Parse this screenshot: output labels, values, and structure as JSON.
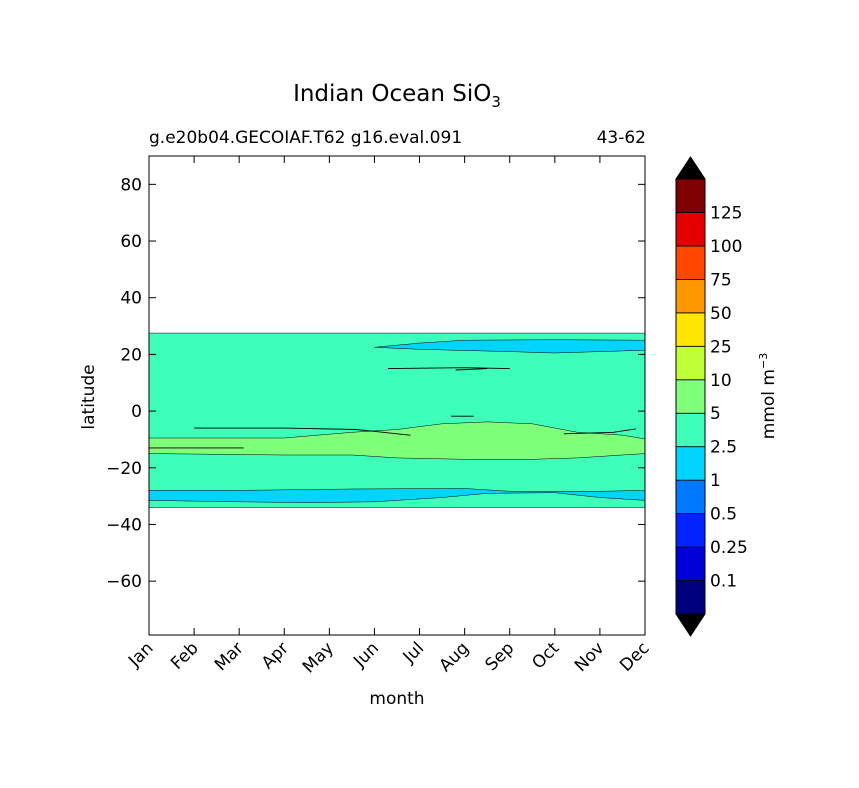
{
  "chart_data": {
    "type": "contour",
    "title_main": "Indian Ocean SiO",
    "title_sub": "3",
    "case_label": "g.e20b04.GECOIAF.T62 g16.eval.091",
    "years_label": "43-62",
    "xlabel": "month",
    "ylabel": "latitude",
    "x_ticks": [
      "Jan",
      "Feb",
      "Mar",
      "Apr",
      "May",
      "Jun",
      "Jul",
      "Aug",
      "Sep",
      "Oct",
      "Nov",
      "Dec"
    ],
    "y_ticks": [
      80,
      60,
      40,
      20,
      0,
      -20,
      -40,
      -60
    ],
    "ylim": [
      -79,
      90
    ],
    "xlim": [
      0,
      11
    ],
    "colorbar": {
      "label": "mmol m",
      "label_sup": "−3",
      "levels": [
        0.1,
        0.25,
        0.5,
        1,
        2.5,
        5,
        10,
        25,
        50,
        75,
        100,
        125
      ],
      "level_labels": [
        "0.1",
        "0.25",
        "0.5",
        "1",
        "2.5",
        "5",
        "10",
        "25",
        "50",
        "75",
        "100",
        "125"
      ],
      "colors": [
        "#00007f",
        "#0000d8",
        "#0022ff",
        "#0078ff",
        "#00d4ff",
        "#3dffb9",
        "#7fff7a",
        "#c0ff36",
        "#ffe600",
        "#ff9800",
        "#ff4700",
        "#e50000",
        "#7f0000"
      ],
      "extend_colors": {
        "under": "#000000",
        "over": "#000000"
      }
    },
    "regions": [
      {
        "level": "2.5-5",
        "lat": [
          -34,
          27.5
        ],
        "month": [
          0,
          11
        ],
        "color": "#3dffb9"
      },
      {
        "level": "5-10",
        "lat": [
          -16,
          -4
        ],
        "month": [
          0,
          11
        ],
        "color": "#7fff7a"
      },
      {
        "level": "1-2.5",
        "lat": [
          -32,
          -27.5
        ],
        "month": [
          0,
          11
        ],
        "color": "#00d4ff"
      },
      {
        "level": "1-2.5",
        "lat": [
          21,
          25
        ],
        "month": [
          5,
          11
        ],
        "color": "#00d4ff"
      }
    ]
  }
}
